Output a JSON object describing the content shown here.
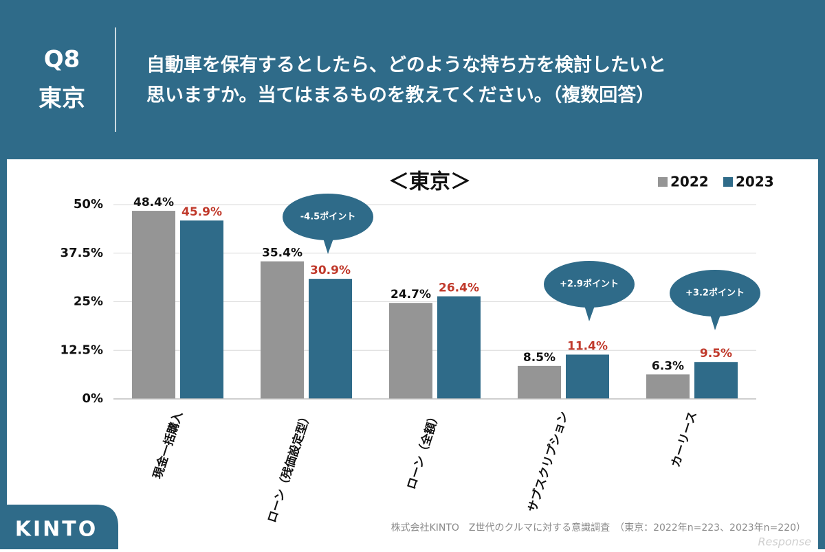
{
  "header": {
    "question": "Q8",
    "region": "東京",
    "text_lines": [
      "自動車を保有するとしたら、どのような持ち方を検討したいと",
      "思いますか。当てはまるものを教えてください。（複数回答）"
    ]
  },
  "chart_data": {
    "type": "bar",
    "title": "＜東京＞",
    "categories": [
      "現金一括購入",
      "ローン（残価設定型）",
      "ローン（全額）",
      "サブスクリプション",
      "カーリース"
    ],
    "series": [
      {
        "name": "2022",
        "color": "#959595",
        "values": [
          48.4,
          35.4,
          24.7,
          8.5,
          6.3
        ],
        "value_labels": [
          "48.4%",
          "35.4%",
          "24.7%",
          "8.5%",
          "6.3%"
        ],
        "label_color": "#111111"
      },
      {
        "name": "2023",
        "color": "#2f6b89",
        "values": [
          45.9,
          30.9,
          26.4,
          11.4,
          9.5
        ],
        "value_labels": [
          "45.9%",
          "30.9%",
          "26.4%",
          "11.4%",
          "9.5%"
        ],
        "label_color": "#c0392b"
      }
    ],
    "ylim": [
      0,
      50
    ],
    "yticks": [
      {
        "value": 0,
        "label": "0%"
      },
      {
        "value": 12.5,
        "label": "12.5%"
      },
      {
        "value": 25,
        "label": "25%"
      },
      {
        "value": 37.5,
        "label": "37.5%"
      },
      {
        "value": 50,
        "label": "50%"
      }
    ],
    "grid": true,
    "legend": "top-right",
    "annotations": [
      "-4.5ポイント",
      "+2.9ポイント",
      "+3.2ポイント"
    ]
  },
  "footer": {
    "logo": "KINTO",
    "source": "株式会社KINTO　Z世代のクルマに対する意識調査　（東京：2022年n=223、2023年n=220）",
    "watermark": "Response"
  }
}
